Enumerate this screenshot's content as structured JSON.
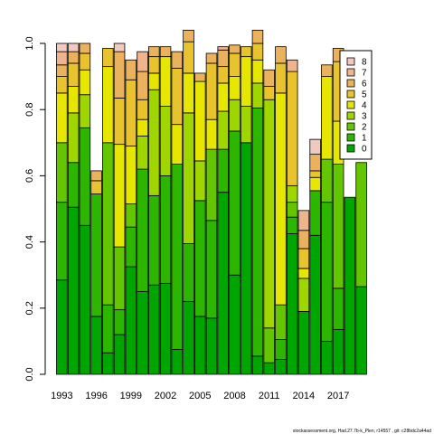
{
  "footer_text": "stockassessment.org, Had.27.7b-k_Plen, r14557 , git: c28bdc2a44ad",
  "chart_data": {
    "type": "bar",
    "stacked": true,
    "ylim": [
      0,
      1
    ],
    "yticks": [
      "0.0",
      "0.2",
      "0.4",
      "0.6",
      "0.8",
      "1.0"
    ],
    "xticks": [
      "1993",
      "1996",
      "1999",
      "2002",
      "2005",
      "2008",
      "2011",
      "2014",
      "2017"
    ],
    "legend_position": "top-right",
    "grid": false,
    "legend_order": [
      "8",
      "7",
      "6",
      "5",
      "4",
      "3",
      "2",
      "1",
      "0"
    ],
    "series": [
      {
        "name": "0",
        "color": "#00A600",
        "values": [
          0.285,
          0.505,
          0.45,
          0.175,
          0.065,
          0.12,
          0.325,
          0.25,
          0.27,
          0.275,
          0.075,
          0.22,
          0.175,
          0.17,
          0.55,
          0.3,
          0.7,
          0.055,
          0.035,
          0.045,
          0.425,
          0.19,
          0.42,
          0.1,
          0.135,
          0.535,
          0.265
        ]
      },
      {
        "name": "1",
        "color": "#2DB600",
        "values": [
          0.235,
          0.135,
          0.295,
          0.37,
          0.145,
          0.075,
          0.12,
          0.37,
          0.27,
          0.325,
          0.56,
          0.175,
          0.35,
          0.295,
          0.13,
          0.435,
          0.0,
          0.75,
          0.0,
          0.06,
          0.05,
          0.0,
          0.135,
          0.42,
          0.125,
          0.0,
          0.0
        ]
      },
      {
        "name": "2",
        "color": "#63C600",
        "values": [
          0.18,
          0.0,
          0.0,
          0.0,
          0.49,
          0.19,
          0.07,
          0.0,
          0.0,
          0.0,
          0.0,
          0.0,
          0.0,
          0.215,
          0.0,
          0.0,
          0.0,
          0.0,
          0.105,
          0.105,
          0.045,
          0.0,
          0.0,
          0.13,
          0.375,
          0.0,
          0.375
        ]
      },
      {
        "name": "3",
        "color": "#A0D600",
        "values": [
          0.0,
          0.15,
          0.1,
          0.0,
          0.0,
          0.0,
          0.0,
          0.1,
          0.32,
          0.21,
          0.0,
          0.395,
          0.12,
          0.0,
          0.115,
          0.095,
          0.11,
          0.075,
          0.69,
          0.0,
          0.05,
          0.1,
          0.0,
          0.0,
          0.0,
          0.0,
          0.0
        ]
      },
      {
        "name": "4",
        "color": "#E6E600",
        "values": [
          0.15,
          0.08,
          0.075,
          0.0,
          0.23,
          0.31,
          0.175,
          0.05,
          0.05,
          0.15,
          0.12,
          0.12,
          0.24,
          0.09,
          0.085,
          0.07,
          0.15,
          0.07,
          0.0,
          0.64,
          0.0,
          0.03,
          0.04,
          0.25,
          0.13,
          0.0,
          0.0
        ]
      },
      {
        "name": "5",
        "color": "#E8C32E",
        "values": [
          0.05,
          0.07,
          0.05,
          0.04,
          0.055,
          0.14,
          0.2,
          0.06,
          0.05,
          0.0,
          0.17,
          0.095,
          0.0,
          0.17,
          0.05,
          0.07,
          0.03,
          0.05,
          0.04,
          0.09,
          0.345,
          0.06,
          0.02,
          0.0,
          0.18,
          0.0,
          0.0
        ]
      },
      {
        "name": "6",
        "color": "#EBB25E",
        "values": [
          0.035,
          0.035,
          0.03,
          0.03,
          0.0,
          0.14,
          0.06,
          0.085,
          0.03,
          0.03,
          0.05,
          0.035,
          0.025,
          0.03,
          0.05,
          0.025,
          0.0,
          0.04,
          0.05,
          0.05,
          0.0,
          0.055,
          0.05,
          0.035,
          0.04,
          0.0,
          0.0
        ]
      },
      {
        "name": "7",
        "color": "#EDB48E",
        "values": [
          0.04,
          0.0,
          0.0,
          0.0,
          0.0,
          0.0,
          0.0,
          0.06,
          0.0,
          0.0,
          0.0,
          0.0,
          0.0,
          0.0,
          0.01,
          0.0,
          0.0,
          0.0,
          0.0,
          0.0,
          0.035,
          0.06,
          0.0,
          0.0,
          0.0,
          0.0,
          0.0
        ]
      },
      {
        "name": "8",
        "color": "#F0C9C0",
        "values": [
          0.025,
          0.025,
          0.0,
          0.0,
          0.0,
          0.025,
          0.0,
          0.0,
          0.0,
          0.0,
          0.0,
          0.0,
          0.0,
          0.0,
          0.0,
          0.0,
          0.0,
          0.0,
          0.0,
          0.0,
          0.0,
          0.0,
          0.045,
          0.0,
          0.0,
          0.0,
          0.0
        ]
      }
    ],
    "categories": [
      "1993",
      "1994",
      "1995",
      "1996",
      "1997",
      "1998",
      "1999",
      "2000",
      "2001",
      "2002",
      "2003",
      "2004",
      "2005",
      "2006",
      "2007",
      "2008",
      "2009",
      "2010",
      "2011",
      "2012",
      "2013",
      "2014",
      "2015",
      "2016",
      "2017",
      "2018",
      "2019"
    ]
  }
}
